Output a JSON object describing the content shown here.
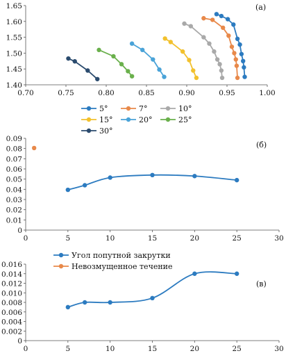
{
  "colors": {
    "axis": "#555555",
    "blue": "#2c7bc0",
    "orange": "#e8894a",
    "gray": "#a9a9a9",
    "yellow": "#f2c12e",
    "lightblue": "#4aa3d8",
    "green": "#6ab04c",
    "navy": "#2b4b6e"
  },
  "chart_data": [
    {
      "type": "line",
      "panel_label": "(а)",
      "xlim": [
        0.7,
        1.0
      ],
      "ylim": [
        1.4,
        1.65
      ],
      "xticks": [
        "0.70",
        "0.75",
        "0.80",
        "0.85",
        "0.90",
        "0.95",
        "1.00"
      ],
      "yticks": [
        "1.40",
        "1.45",
        "1.50",
        "1.55",
        "1.60",
        "1.65"
      ],
      "legend_placement": "bottom",
      "series": [
        {
          "name": "5°",
          "color_key": "blue",
          "x": [
            0.937,
            0.943,
            0.951,
            0.958,
            0.963,
            0.966,
            0.968,
            0.97,
            0.971,
            0.972
          ],
          "y": [
            1.623,
            1.617,
            1.607,
            1.59,
            1.545,
            1.527,
            1.497,
            1.475,
            1.455,
            1.425
          ]
        },
        {
          "name": "7°",
          "color_key": "orange",
          "x": [
            0.921,
            0.932,
            0.945,
            0.952,
            0.956,
            0.959,
            0.961,
            0.962,
            0.963
          ],
          "y": [
            1.61,
            1.605,
            1.58,
            1.555,
            1.52,
            1.5,
            1.48,
            1.46,
            1.422
          ]
        },
        {
          "name": "10°",
          "color_key": "gray",
          "x": [
            0.897,
            0.905,
            0.921,
            0.928,
            0.934,
            0.938,
            0.941,
            0.943,
            0.944
          ],
          "y": [
            1.593,
            1.585,
            1.55,
            1.53,
            1.505,
            1.48,
            1.465,
            1.445,
            1.422
          ]
        },
        {
          "name": "15°",
          "color_key": "yellow",
          "x": [
            0.873,
            0.88,
            0.895,
            0.903,
            0.908,
            0.912
          ],
          "y": [
            1.546,
            1.535,
            1.505,
            1.478,
            1.445,
            1.422
          ]
        },
        {
          "name": "20°",
          "color_key": "lightblue",
          "x": [
            0.832,
            0.845,
            0.858,
            0.866,
            0.872
          ],
          "y": [
            1.53,
            1.51,
            1.48,
            1.448,
            1.425
          ]
        },
        {
          "name": "25°",
          "color_key": "green",
          "x": [
            0.791,
            0.809,
            0.819,
            0.827,
            0.832
          ],
          "y": [
            1.51,
            1.49,
            1.465,
            1.443,
            1.427
          ]
        },
        {
          "name": "30°",
          "color_key": "navy",
          "x": [
            0.753,
            0.761,
            0.777,
            0.789
          ],
          "y": [
            1.483,
            1.474,
            1.445,
            1.418
          ]
        }
      ]
    },
    {
      "type": "line",
      "panel_label": "(б)",
      "xlim": [
        0,
        30
      ],
      "ylim": [
        0,
        0.09
      ],
      "xticks": [
        "0",
        "5",
        "10",
        "15",
        "20",
        "25",
        "30"
      ],
      "yticks": [
        "0",
        "0.01",
        "0.02",
        "0.03",
        "0.04",
        "0.05",
        "0.06",
        "0.07",
        "0.08",
        "0.09"
      ],
      "series": [
        {
          "name": "Угол попутной закрутки",
          "color_key": "blue",
          "smooth": true,
          "x": [
            5,
            7,
            10,
            15,
            20,
            25
          ],
          "y": [
            0.0395,
            0.044,
            0.0515,
            0.054,
            0.053,
            0.049
          ]
        },
        {
          "name": "Невозмущенное течение",
          "color_key": "orange",
          "smooth": false,
          "x": [
            1
          ],
          "y": [
            0.0805
          ]
        }
      ]
    },
    {
      "type": "line",
      "panel_label": "(в)",
      "xlim": [
        0,
        30
      ],
      "ylim": [
        0,
        0.016
      ],
      "xticks": [
        "0",
        "5",
        "10",
        "15",
        "20",
        "25",
        "30"
      ],
      "yticks": [
        "0",
        "0.002",
        "0.004",
        "0.006",
        "0.008",
        "0.010",
        "0.012",
        "0.014",
        "0.016"
      ],
      "legend_placement": "top-left",
      "legend_entries": [
        {
          "name": "Угол попутной закрутки",
          "color_key": "blue"
        },
        {
          "name": "Невозмущенное течение",
          "color_key": "orange"
        }
      ],
      "series": [
        {
          "name": "Угол попутной закрутки",
          "color_key": "blue",
          "smooth": true,
          "x": [
            5,
            7,
            10,
            15,
            20,
            25
          ],
          "y": [
            0.007,
            0.008,
            0.008,
            0.0089,
            0.014,
            0.014
          ]
        }
      ]
    }
  ]
}
